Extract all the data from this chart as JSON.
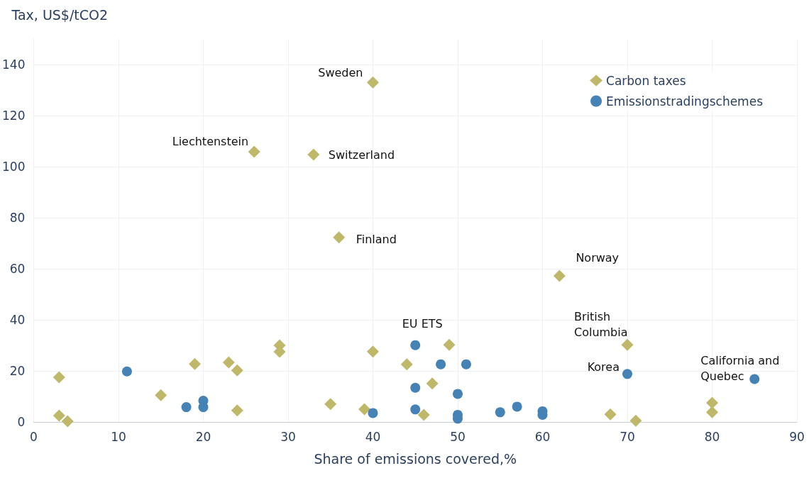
{
  "chart_data": {
    "type": "scatter",
    "xlabel": "Share of emissions covered,%",
    "ylabel": "Tax, US$/tCO2",
    "xlim": [
      0,
      90
    ],
    "xticks": [
      0,
      10,
      20,
      30,
      40,
      50,
      60,
      70,
      80,
      90
    ],
    "ylim": [
      0,
      150
    ],
    "yticks": [
      0,
      20,
      40,
      60,
      80,
      100,
      120,
      140
    ],
    "grid": true,
    "legend": "top right",
    "series": [
      {
        "name": "Carbon taxes",
        "color": "#bfb76a",
        "marker": "diamond",
        "x": [
          3,
          3,
          4,
          15,
          19,
          20,
          23,
          24,
          24,
          26,
          29,
          29,
          33,
          35,
          36,
          39,
          40,
          40,
          44,
          46,
          47,
          49,
          62,
          68,
          70,
          71,
          80,
          80
        ],
        "values": [
          17.5,
          2.5,
          0.3,
          10.5,
          22.7,
          null,
          23.3,
          20.2,
          4.5,
          105.8,
          30,
          27.5,
          104.7,
          7,
          72.3,
          5,
          133,
          27.6,
          22.6,
          2.8,
          15.1,
          30.2,
          57.2,
          3,
          30.2,
          0.5,
          7.5,
          3.8
        ]
      },
      {
        "name": "Emissionstradingschemes",
        "color": "#4682b4",
        "marker": "circle",
        "x": [
          11,
          18,
          20,
          20,
          40,
          45,
          45,
          45,
          48,
          50,
          50,
          50,
          51,
          55,
          57,
          60,
          60,
          70,
          85
        ],
        "values": [
          19.8,
          5.8,
          8.3,
          5.8,
          3.5,
          30.1,
          13.4,
          4.9,
          22.6,
          11,
          2.8,
          1.3,
          22.6,
          3.8,
          6,
          4.2,
          2.8,
          18.8,
          16.8
        ]
      }
    ],
    "annotations": [
      {
        "text": "Sweden",
        "x": 40,
        "y": 133
      },
      {
        "text": "Liechtenstein",
        "x": 26,
        "y": 105.8
      },
      {
        "text": "Switzerland",
        "x": 33,
        "y": 104.7
      },
      {
        "text": "Finland",
        "x": 36,
        "y": 72.3
      },
      {
        "text": "Norway",
        "x": 62,
        "y": 57.2
      },
      {
        "text": "EU ETS",
        "x": 45,
        "y": 30.1
      },
      {
        "text": "British Columbia",
        "x": 70,
        "y": 30.2
      },
      {
        "text": "Korea",
        "x": 70,
        "y": 18.8
      },
      {
        "text": "California and Quebec",
        "x": 85,
        "y": 16.8
      }
    ]
  }
}
